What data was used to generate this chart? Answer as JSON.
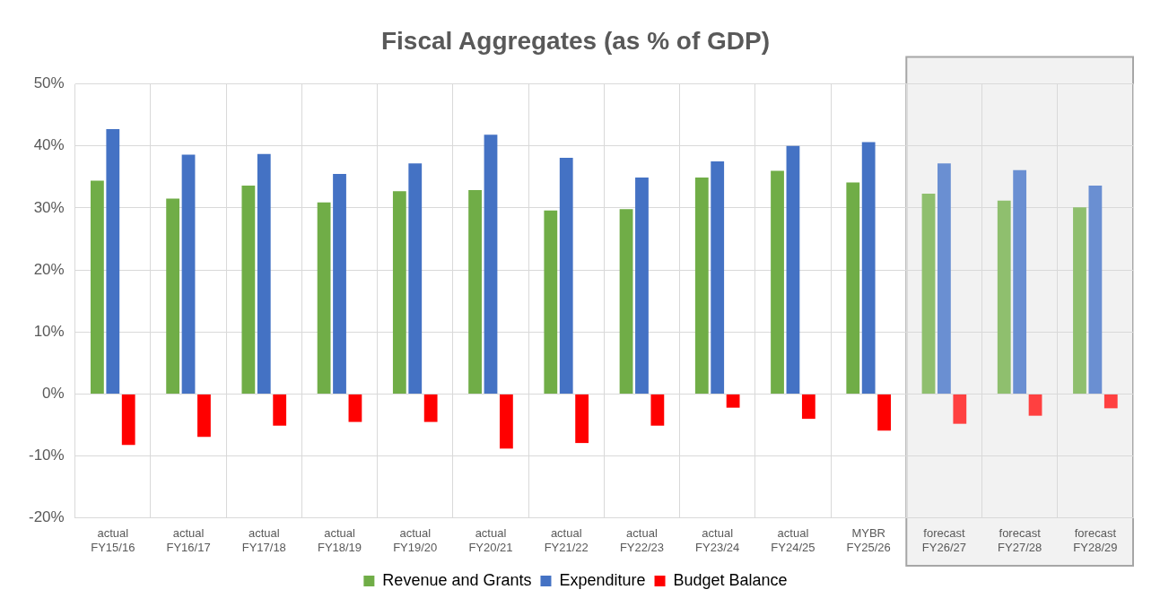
{
  "chart_data": {
    "type": "bar",
    "title": "Fiscal Aggregates (as % of GDP)",
    "categories": [
      "actual\nFY15/16",
      "actual\nFY16/17",
      "actual\nFY17/18",
      "actual\nFY18/19",
      "actual\nFY19/20",
      "actual\nFY20/21",
      "actual\nFY21/22",
      "actual\nFY22/23",
      "actual\nFY23/24",
      "actual\nFY24/25",
      "MYBR\nFY25/26",
      "forecast\nFY26/27",
      "forecast\nFY27/28",
      "forecast\nFY28/29"
    ],
    "series": [
      {
        "name": "Revenue and Grants",
        "color": "#70ad47",
        "colors": [
          "#70ad47",
          "#70ad47",
          "#70ad47",
          "#70ad47",
          "#70ad47",
          "#70ad47",
          "#70ad47",
          "#70ad47",
          "#70ad47",
          "#70ad47",
          "#70ad47",
          "#8fbf6e",
          "#8fbf6e",
          "#8fbf6e"
        ],
        "values": [
          34.4,
          31.5,
          33.6,
          30.9,
          32.7,
          32.9,
          29.6,
          29.8,
          34.9,
          36.0,
          34.1,
          32.3,
          31.2,
          30.1
        ]
      },
      {
        "name": "Expenditure",
        "color": "#4472c4",
        "colors": [
          "#4472c4",
          "#4472c4",
          "#4472c4",
          "#4472c4",
          "#4472c4",
          "#4472c4",
          "#4472c4",
          "#4472c4",
          "#4472c4",
          "#4472c4",
          "#4472c4",
          "#6a8fd2",
          "#6a8fd2",
          "#6a8fd2"
        ],
        "values": [
          42.7,
          38.6,
          38.7,
          35.5,
          37.2,
          41.8,
          38.1,
          34.9,
          37.5,
          40.0,
          40.6,
          37.2,
          36.1,
          33.6
        ]
      },
      {
        "name": "Budget Balance",
        "color": "#ff0000",
        "colors": [
          "#ff0000",
          "#ff0000",
          "#ff0000",
          "#ff0000",
          "#ff0000",
          "#ff0000",
          "#ff0000",
          "#ff0000",
          "#ff0000",
          "#ff0000",
          "#ff0000",
          "#ff4040",
          "#ff4040",
          "#ff4040"
        ],
        "values": [
          -8.2,
          -6.9,
          -5.1,
          -4.5,
          -4.5,
          -8.8,
          -7.9,
          -5.1,
          -2.2,
          -4.0,
          -5.9,
          -4.8,
          -3.5,
          -2.3
        ]
      }
    ],
    "ylim": [
      -20,
      50
    ],
    "yticks": [
      {
        "value": -20,
        "label": "-20%"
      },
      {
        "value": -10,
        "label": "-10%"
      },
      {
        "value": 0,
        "label": "0%"
      },
      {
        "value": 10,
        "label": "10%"
      },
      {
        "value": 20,
        "label": "20%"
      },
      {
        "value": 30,
        "label": "30%"
      },
      {
        "value": 40,
        "label": "40%"
      },
      {
        "value": 50,
        "label": "50%"
      }
    ],
    "bands": [
      {
        "axis": "x",
        "from": "forecast\nFY26/27",
        "to": "forecast\nFY28/29",
        "color": "#f2f2f2"
      }
    ],
    "grid": true,
    "legend": "bottom"
  }
}
